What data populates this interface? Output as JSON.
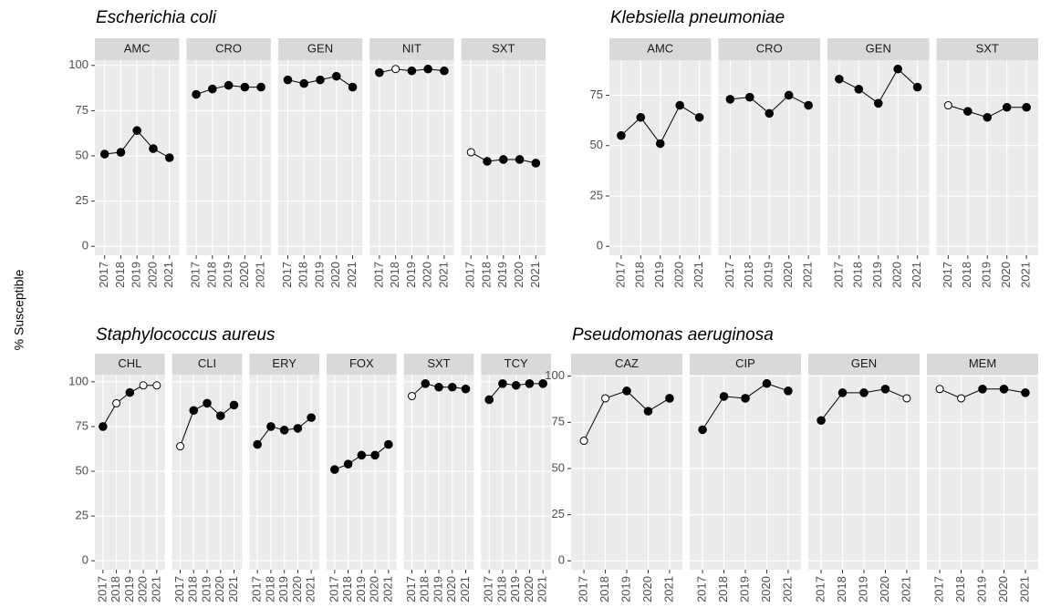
{
  "y_axis_label": "% Susceptible",
  "chart_data": [
    {
      "type": "line",
      "title": "Escherichia coli",
      "categories": [
        "2017",
        "2018",
        "2019",
        "2020",
        "2021"
      ],
      "ylim": [
        -4.9,
        102.9
      ],
      "yticks": [
        0,
        25,
        50,
        75,
        100
      ],
      "grid": true,
      "color": "#000000",
      "facets": [
        {
          "name": "AMC",
          "values": [
            51,
            52,
            64,
            54,
            49
          ],
          "markers": [
            "filled",
            "filled",
            "filled",
            "filled",
            "filled"
          ]
        },
        {
          "name": "CRO",
          "values": [
            84,
            87,
            89,
            88,
            88
          ],
          "markers": [
            "filled",
            "filled",
            "filled",
            "filled",
            "filled"
          ]
        },
        {
          "name": "GEN",
          "values": [
            92,
            90,
            92,
            94,
            88
          ],
          "markers": [
            "filled",
            "filled",
            "filled",
            "filled",
            "filled"
          ]
        },
        {
          "name": "NIT",
          "values": [
            96,
            98,
            97,
            98,
            97
          ],
          "markers": [
            "filled",
            "open",
            "filled",
            "filled",
            "filled"
          ]
        },
        {
          "name": "SXT",
          "values": [
            52,
            47,
            48,
            48,
            46
          ],
          "markers": [
            "open",
            "filled",
            "filled",
            "filled",
            "filled"
          ]
        }
      ]
    },
    {
      "type": "line",
      "title": "Klebsiella pneumoniae",
      "categories": [
        "2017",
        "2018",
        "2019",
        "2020",
        "2021"
      ],
      "ylim": [
        -4.4,
        92.4
      ],
      "yticks": [
        0,
        25,
        50,
        75
      ],
      "grid": true,
      "color": "#000000",
      "facets": [
        {
          "name": "AMC",
          "values": [
            55,
            64,
            51,
            70,
            64
          ],
          "markers": [
            "filled",
            "filled",
            "filled",
            "filled",
            "filled"
          ]
        },
        {
          "name": "CRO",
          "values": [
            73,
            74,
            66,
            75,
            70
          ],
          "markers": [
            "filled",
            "filled",
            "filled",
            "filled",
            "filled"
          ]
        },
        {
          "name": "GEN",
          "values": [
            83,
            78,
            71,
            88,
            79
          ],
          "markers": [
            "filled",
            "filled",
            "filled",
            "filled",
            "filled"
          ]
        },
        {
          "name": "SXT",
          "values": [
            70,
            67,
            64,
            69,
            69
          ],
          "markers": [
            "open",
            "filled",
            "filled",
            "filled",
            "filled"
          ]
        }
      ]
    },
    {
      "type": "line",
      "title": "Staphylococcus aureus",
      "categories": [
        "2017",
        "2018",
        "2019",
        "2020",
        "2021"
      ],
      "ylim": [
        -5,
        104
      ],
      "yticks": [
        0,
        25,
        50,
        75,
        100
      ],
      "grid": true,
      "color": "#000000",
      "facets": [
        {
          "name": "CHL",
          "values": [
            75,
            88,
            94,
            98,
            98
          ],
          "markers": [
            "filled",
            "open",
            "filled",
            "open",
            "open"
          ]
        },
        {
          "name": "CLI",
          "values": [
            64,
            84,
            88,
            81,
            87
          ],
          "markers": [
            "open",
            "filled",
            "filled",
            "filled",
            "filled"
          ]
        },
        {
          "name": "ERY",
          "values": [
            65,
            75,
            73,
            74,
            80
          ],
          "markers": [
            "filled",
            "filled",
            "filled",
            "filled",
            "filled"
          ]
        },
        {
          "name": "FOX",
          "values": [
            51,
            54,
            59,
            59,
            65
          ],
          "markers": [
            "filled",
            "filled",
            "filled",
            "filled",
            "filled"
          ]
        },
        {
          "name": "SXT",
          "values": [
            92,
            99,
            97,
            97,
            96
          ],
          "markers": [
            "open",
            "filled",
            "filled",
            "filled",
            "filled"
          ]
        },
        {
          "name": "TCY",
          "values": [
            90,
            99,
            98,
            99,
            99
          ],
          "markers": [
            "filled",
            "filled",
            "filled",
            "filled",
            "filled"
          ]
        }
      ]
    },
    {
      "type": "line",
      "title": "Pseudomonas aeruginosa",
      "categories": [
        "2017",
        "2018",
        "2019",
        "2020",
        "2021"
      ],
      "ylim": [
        -4.8,
        100.8
      ],
      "yticks": [
        0,
        25,
        50,
        75,
        100
      ],
      "grid": true,
      "color": "#000000",
      "facets": [
        {
          "name": "CAZ",
          "values": [
            65,
            88,
            92,
            81,
            88
          ],
          "markers": [
            "open",
            "open",
            "filled",
            "filled",
            "filled"
          ]
        },
        {
          "name": "CIP",
          "values": [
            71,
            89,
            88,
            96,
            92
          ],
          "markers": [
            "filled",
            "filled",
            "filled",
            "filled",
            "filled"
          ]
        },
        {
          "name": "GEN",
          "values": [
            76,
            91,
            91,
            93,
            88
          ],
          "markers": [
            "filled",
            "filled",
            "filled",
            "filled",
            "open"
          ]
        },
        {
          "name": "MEM",
          "values": [
            93,
            88,
            93,
            93,
            91
          ],
          "markers": [
            "open",
            "open",
            "filled",
            "filled",
            "filled"
          ]
        }
      ]
    }
  ]
}
